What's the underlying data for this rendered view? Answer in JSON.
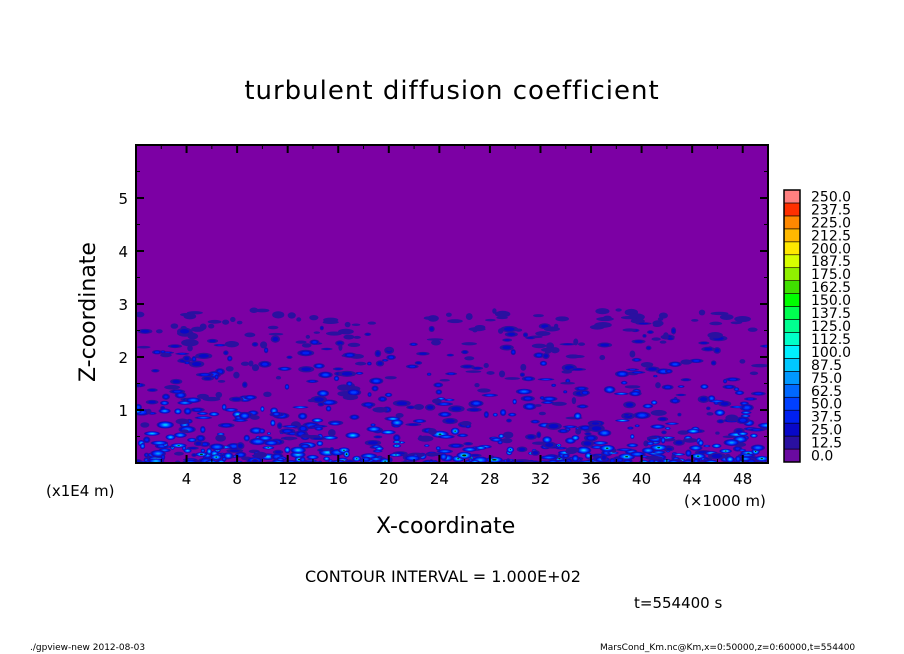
{
  "chart_data": {
    "type": "contour",
    "title": "turbulent diffusion coefficient",
    "xlabel": "X-coordinate",
    "ylabel": "Z-coordinate",
    "x_unit": "(×1000 m)",
    "y_unit": "(x1E4 m)",
    "xlim": [
      0,
      50
    ],
    "ylim": [
      0,
      6
    ],
    "x_ticks": [
      "4",
      "8",
      "12",
      "16",
      "20",
      "24",
      "28",
      "32",
      "36",
      "40",
      "44",
      "48"
    ],
    "y_ticks": [
      "1",
      "2",
      "3",
      "4",
      "5"
    ],
    "colorbar": {
      "levels": [
        "0.0",
        "12.5",
        "25.0",
        "37.5",
        "50.0",
        "62.5",
        "75.0",
        "87.5",
        "100.0",
        "112.5",
        "125.0",
        "137.5",
        "150.0",
        "162.5",
        "175.0",
        "187.5",
        "200.0",
        "212.5",
        "225.0",
        "237.5",
        "250.0"
      ],
      "colors": [
        "#6a0aa0",
        "#2a10a0",
        "#0808c8",
        "#0020f0",
        "#0040ff",
        "#0068ff",
        "#0098ff",
        "#00c8ff",
        "#00f0ff",
        "#00ffc8",
        "#00ff90",
        "#00ff50",
        "#00ff00",
        "#40e000",
        "#90f000",
        "#d8ff00",
        "#ffe800",
        "#ffb800",
        "#ff8800",
        "#ff3000",
        "#ff8080"
      ]
    },
    "background_color": "#7c00a4",
    "contour_interval_text": "CONTOUR INTERVAL = 1.000E+02",
    "time_text": "t=554400 s"
  },
  "footer": {
    "program": "./gpview-new   2012-08-03",
    "source": "MarsCond_Km.nc@Km,x=0:50000,z=0:60000,t=554400"
  }
}
